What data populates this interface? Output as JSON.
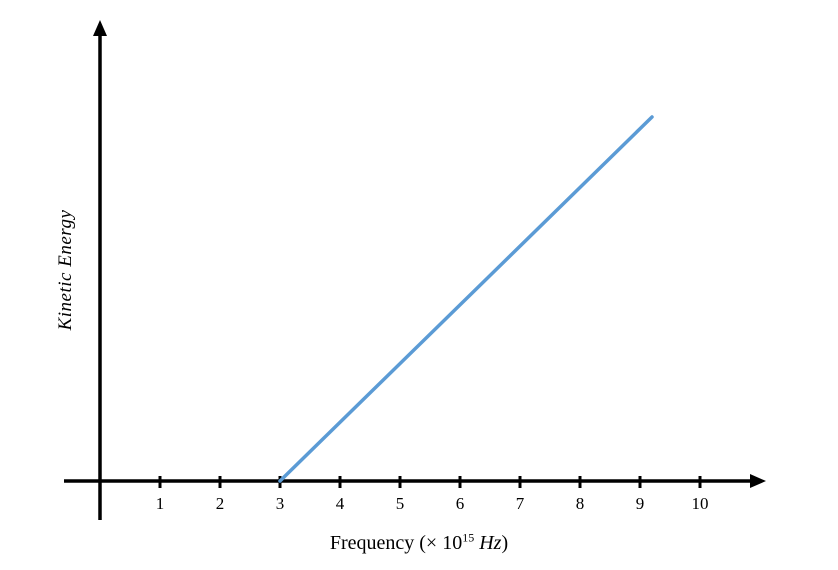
{
  "chart_data": {
    "type": "line",
    "title": "",
    "xlabel": "Frequency (× 10¹⁵ Hz)",
    "xlabel_parts": {
      "prefix": "Frequency (× 10",
      "sup": "15",
      "unit": " Hz",
      "suffix": ")"
    },
    "ylabel": "Kinetic Energy",
    "x_ticks": [
      1,
      2,
      3,
      4,
      5,
      6,
      7,
      8,
      9,
      10
    ],
    "xlim": [
      0,
      11
    ],
    "ylim": [
      0,
      1
    ],
    "grid": false,
    "legend": false,
    "axis_color": "#000000",
    "series": [
      {
        "name": "kinetic-energy-line",
        "color": "#5B9BD5",
        "points": [
          [
            3,
            0
          ],
          [
            9.2,
            0.8
          ]
        ]
      }
    ],
    "annotations": {
      "threshold_frequency_x": 3,
      "line_end_x": 9.2
    }
  }
}
